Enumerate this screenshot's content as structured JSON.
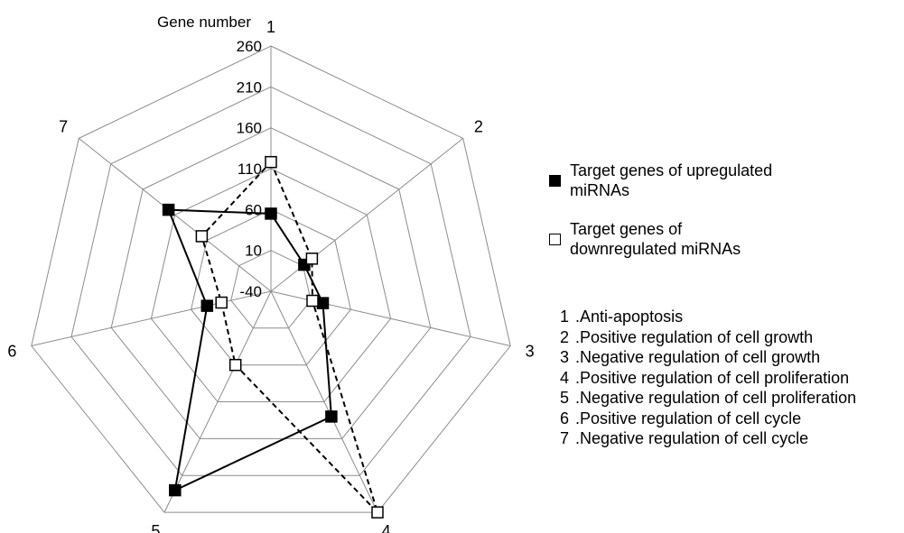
{
  "chart_data": {
    "type": "radar",
    "axis_title": "Gene number",
    "rmin": -40,
    "rmax": 260,
    "ticks": [
      -40,
      10,
      60,
      110,
      160,
      210,
      260
    ],
    "categories": [
      "1",
      "2",
      "3",
      "4",
      "5",
      "6",
      "7"
    ],
    "category_names": [
      "Anti-apoptosis",
      "Positive regulation of cell growth",
      "Negative regulation of cell growth",
      "Positive regulation of cell proliferation",
      "Negative regulation of cell proliferation",
      "Positive regulation of cell cycle",
      "Negative regulation of cell cycle"
    ],
    "series": [
      {
        "name": "Target genes of upregulated miRNAs",
        "values": [
          55,
          12,
          25,
          130,
          230,
          40,
          120
        ],
        "marker": "filled-square",
        "line": "solid",
        "color": "#000000"
      },
      {
        "name": "Target genes of downregulated miRNAs",
        "values": [
          118,
          24,
          12,
          260,
          60,
          22,
          68
        ],
        "marker": "open-square",
        "line": "dashed",
        "color": "#000000"
      }
    ],
    "grid": true,
    "legend_position": "right"
  }
}
